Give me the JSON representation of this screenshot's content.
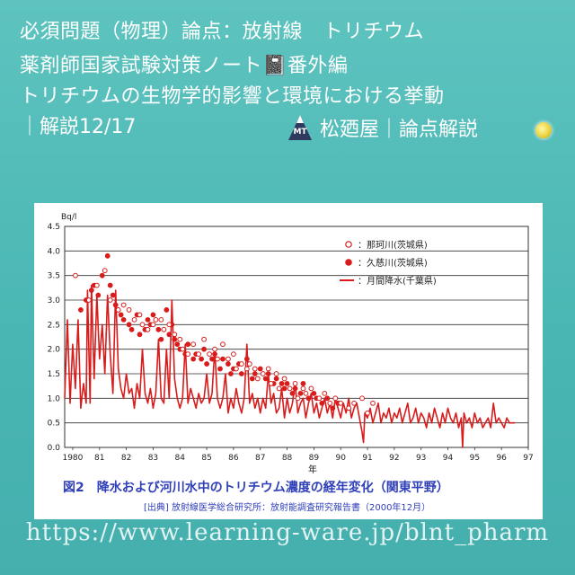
{
  "header": {
    "line1": "必須問題（物理）論点：放射線　トリチウム",
    "line2": "薬剤師国家試験対策ノート📓番外編",
    "line3": "トリチウムの生物学的影響と環境における挙動",
    "line4": "｜解説12/17",
    "brand": "松廼屋｜論点解説",
    "logo_text": "MT"
  },
  "colors": {
    "accent": "#d81c1c",
    "caption": "#3040b8"
  },
  "chart_data": {
    "type": "line",
    "ylabel": "Bq/l",
    "xlabel": "年",
    "ylim": [
      0,
      4.5
    ],
    "yticks": [
      0.0,
      0.5,
      1.0,
      1.5,
      2.0,
      2.5,
      3.0,
      3.5,
      4.0,
      4.5
    ],
    "xticks": [
      "1980",
      "81",
      "82",
      "83",
      "84",
      "85",
      "86",
      "87",
      "88",
      "89",
      "90",
      "91",
      "92",
      "93",
      "94",
      "95",
      "96",
      "97"
    ],
    "xlim": [
      1979.7,
      1997.0
    ],
    "legend": [
      "：那珂川(茨城県)",
      "：久慈川(茨城県)",
      "：月間降水(千葉県)"
    ],
    "series": [
      {
        "name": "：月間降水(千葉県)",
        "style": "line",
        "points": [
          [
            1979.7,
            1.0
          ],
          [
            1979.8,
            2.6
          ],
          [
            1979.9,
            0.9
          ],
          [
            1980.0,
            2.1
          ],
          [
            1980.1,
            1.2
          ],
          [
            1980.2,
            2.6
          ],
          [
            1980.3,
            0.8
          ],
          [
            1980.4,
            1.3
          ],
          [
            1980.5,
            0.9
          ],
          [
            1980.55,
            3.2
          ],
          [
            1980.65,
            0.9
          ],
          [
            1980.7,
            3.3
          ],
          [
            1980.8,
            1.4
          ],
          [
            1980.9,
            3.1
          ],
          [
            1981.0,
            1.8
          ],
          [
            1981.1,
            2.5
          ],
          [
            1981.2,
            1.5
          ],
          [
            1981.3,
            3.1
          ],
          [
            1981.4,
            1.9
          ],
          [
            1981.5,
            1.1
          ],
          [
            1981.6,
            3.2
          ],
          [
            1981.7,
            1.6
          ],
          [
            1981.8,
            1.2
          ],
          [
            1981.9,
            1.0
          ],
          [
            1982.0,
            1.5
          ],
          [
            1982.1,
            1.1
          ],
          [
            1982.2,
            1.2
          ],
          [
            1982.3,
            0.8
          ],
          [
            1982.4,
            1.3
          ],
          [
            1982.5,
            1.0
          ],
          [
            1982.6,
            2.0
          ],
          [
            1982.7,
            1.1
          ],
          [
            1982.8,
            0.9
          ],
          [
            1982.9,
            1.2
          ],
          [
            1983.0,
            0.8
          ],
          [
            1983.1,
            1.1
          ],
          [
            1983.2,
            2.2
          ],
          [
            1983.3,
            1.0
          ],
          [
            1983.4,
            0.9
          ],
          [
            1983.5,
            2.0
          ],
          [
            1983.6,
            1.0
          ],
          [
            1983.7,
            3.0
          ],
          [
            1983.8,
            1.4
          ],
          [
            1983.9,
            1.0
          ],
          [
            1984.0,
            0.8
          ],
          [
            1984.1,
            1.0
          ],
          [
            1984.2,
            2.1
          ],
          [
            1984.3,
            0.9
          ],
          [
            1984.4,
            1.2
          ],
          [
            1984.5,
            1.0
          ],
          [
            1984.6,
            0.8
          ],
          [
            1984.7,
            1.1
          ],
          [
            1984.8,
            0.9
          ],
          [
            1984.9,
            1.0
          ],
          [
            1985.0,
            1.5
          ],
          [
            1985.1,
            0.9
          ],
          [
            1985.2,
            1.1
          ],
          [
            1985.3,
            2.0
          ],
          [
            1985.4,
            1.0
          ],
          [
            1985.5,
            0.8
          ],
          [
            1985.6,
            1.0
          ],
          [
            1985.7,
            1.5
          ],
          [
            1985.8,
            0.7
          ],
          [
            1985.9,
            1.0
          ],
          [
            1986.0,
            0.8
          ],
          [
            1986.1,
            1.2
          ],
          [
            1986.2,
            0.9
          ],
          [
            1986.3,
            0.7
          ],
          [
            1986.4,
            1.0
          ],
          [
            1986.5,
            2.1
          ],
          [
            1986.6,
            0.9
          ],
          [
            1986.7,
            1.1
          ],
          [
            1986.8,
            0.8
          ],
          [
            1986.9,
            1.0
          ],
          [
            1987.0,
            0.7
          ],
          [
            1987.1,
            1.0
          ],
          [
            1987.2,
            0.8
          ],
          [
            1987.3,
            1.5
          ],
          [
            1987.4,
            0.9
          ],
          [
            1987.5,
            1.1
          ],
          [
            1987.6,
            0.7
          ],
          [
            1987.7,
            0.8
          ],
          [
            1987.8,
            1.2
          ],
          [
            1987.9,
            0.6
          ],
          [
            1988.0,
            1.0
          ],
          [
            1988.1,
            0.7
          ],
          [
            1988.2,
            0.9
          ],
          [
            1988.3,
            1.3
          ],
          [
            1988.4,
            0.7
          ],
          [
            1988.5,
            0.9
          ],
          [
            1988.6,
            1.0
          ],
          [
            1988.7,
            0.6
          ],
          [
            1988.8,
            0.9
          ],
          [
            1988.9,
            1.1
          ],
          [
            1989.0,
            0.7
          ],
          [
            1989.1,
            0.9
          ],
          [
            1989.2,
            0.6
          ],
          [
            1989.3,
            0.8
          ],
          [
            1989.4,
            1.0
          ],
          [
            1989.5,
            0.7
          ],
          [
            1989.6,
            0.9
          ],
          [
            1989.7,
            0.6
          ],
          [
            1989.8,
            1.0
          ],
          [
            1989.9,
            0.8
          ],
          [
            1990.0,
            0.6
          ],
          [
            1990.1,
            0.9
          ],
          [
            1990.2,
            0.7
          ],
          [
            1990.3,
            1.0
          ],
          [
            1990.4,
            0.6
          ],
          [
            1990.5,
            0.8
          ],
          [
            1990.6,
            0.9
          ],
          [
            1990.7,
            0.6
          ],
          [
            1990.8,
            0.3
          ],
          [
            1990.85,
            0.1
          ],
          [
            1990.9,
            0.7
          ],
          [
            1991.0,
            0.6
          ],
          [
            1991.1,
            0.8
          ],
          [
            1991.2,
            0.5
          ],
          [
            1991.3,
            0.7
          ],
          [
            1991.4,
            0.9
          ],
          [
            1991.5,
            0.5
          ],
          [
            1991.6,
            0.7
          ],
          [
            1991.7,
            0.6
          ],
          [
            1991.8,
            0.8
          ],
          [
            1991.9,
            0.5
          ],
          [
            1992.0,
            0.7
          ],
          [
            1992.1,
            0.6
          ],
          [
            1992.2,
            0.8
          ],
          [
            1992.3,
            0.5
          ],
          [
            1992.4,
            0.7
          ],
          [
            1992.5,
            0.9
          ],
          [
            1992.6,
            0.5
          ],
          [
            1992.7,
            0.6
          ],
          [
            1992.8,
            0.8
          ],
          [
            1992.9,
            0.5
          ],
          [
            1993.0,
            0.7
          ],
          [
            1993.1,
            0.6
          ],
          [
            1993.2,
            0.4
          ],
          [
            1993.3,
            0.7
          ],
          [
            1993.4,
            0.5
          ],
          [
            1993.5,
            0.8
          ],
          [
            1993.6,
            0.6
          ],
          [
            1993.7,
            0.4
          ],
          [
            1993.8,
            0.7
          ],
          [
            1993.9,
            0.5
          ],
          [
            1994.0,
            0.8
          ],
          [
            1994.1,
            0.6
          ],
          [
            1994.2,
            0.5
          ],
          [
            1994.3,
            0.7
          ],
          [
            1994.4,
            0.4
          ],
          [
            1994.5,
            0.6
          ],
          [
            1994.55,
            0.0
          ],
          [
            1994.6,
            0.7
          ],
          [
            1994.7,
            0.5
          ],
          [
            1994.8,
            0.6
          ],
          [
            1994.9,
            0.4
          ],
          [
            1995.0,
            0.7
          ],
          [
            1995.1,
            0.5
          ],
          [
            1995.2,
            0.6
          ],
          [
            1995.3,
            0.4
          ],
          [
            1995.4,
            0.5
          ],
          [
            1995.5,
            0.6
          ],
          [
            1995.6,
            0.4
          ],
          [
            1995.7,
            0.9
          ],
          [
            1995.8,
            0.5
          ],
          [
            1995.9,
            0.6
          ],
          [
            1996.0,
            0.5
          ],
          [
            1996.1,
            0.4
          ],
          [
            1996.2,
            0.6
          ],
          [
            1996.3,
            0.5
          ],
          [
            1996.4,
            0.5
          ],
          [
            1996.5,
            0.5
          ]
        ]
      },
      {
        "name": "：久慈川(茨城県)",
        "style": "filled",
        "points": [
          [
            1980.3,
            2.8
          ],
          [
            1980.5,
            3.0
          ],
          [
            1980.7,
            3.2
          ],
          [
            1980.8,
            3.3
          ],
          [
            1980.95,
            3.1
          ],
          [
            1981.1,
            3.5
          ],
          [
            1981.3,
            3.9
          ],
          [
            1981.4,
            3.3
          ],
          [
            1981.5,
            3.1
          ],
          [
            1981.6,
            2.9
          ],
          [
            1981.8,
            2.7
          ],
          [
            1981.9,
            2.6
          ],
          [
            1982.1,
            2.5
          ],
          [
            1982.2,
            2.4
          ],
          [
            1982.4,
            2.7
          ],
          [
            1982.5,
            2.3
          ],
          [
            1982.7,
            2.4
          ],
          [
            1982.8,
            2.6
          ],
          [
            1982.9,
            2.5
          ],
          [
            1983.0,
            2.7
          ],
          [
            1983.2,
            2.4
          ],
          [
            1983.3,
            2.2
          ],
          [
            1983.5,
            2.8
          ],
          [
            1983.6,
            2.3
          ],
          [
            1983.7,
            2.5
          ],
          [
            1983.8,
            2.2
          ],
          [
            1983.9,
            2.1
          ],
          [
            1984.0,
            2.0
          ],
          [
            1984.2,
            1.9
          ],
          [
            1984.3,
            2.1
          ],
          [
            1984.5,
            1.8
          ],
          [
            1984.6,
            1.9
          ],
          [
            1984.8,
            1.8
          ],
          [
            1984.9,
            2.0
          ],
          [
            1985.0,
            1.7
          ],
          [
            1985.2,
            1.8
          ],
          [
            1985.3,
            1.9
          ],
          [
            1985.5,
            1.6
          ],
          [
            1985.6,
            1.8
          ],
          [
            1985.8,
            1.7
          ],
          [
            1985.9,
            1.5
          ],
          [
            1986.0,
            1.6
          ],
          [
            1986.2,
            1.7
          ],
          [
            1986.3,
            1.5
          ],
          [
            1986.5,
            1.8
          ],
          [
            1986.7,
            1.4
          ],
          [
            1986.8,
            1.5
          ],
          [
            1987.0,
            1.6
          ],
          [
            1987.2,
            1.4
          ],
          [
            1987.3,
            1.5
          ],
          [
            1987.5,
            1.3
          ],
          [
            1987.6,
            1.4
          ],
          [
            1987.8,
            1.3
          ],
          [
            1987.9,
            1.2
          ],
          [
            1988.0,
            1.3
          ],
          [
            1988.2,
            1.1
          ],
          [
            1988.3,
            1.2
          ],
          [
            1988.5,
            1.1
          ],
          [
            1988.6,
            1.3
          ],
          [
            1988.8,
            1.0
          ],
          [
            1989.0,
            1.1
          ],
          [
            1989.1,
            1.0
          ],
          [
            1989.3,
            0.9
          ],
          [
            1989.5,
            1.0
          ],
          [
            1989.7,
            0.8
          ],
          [
            1989.9,
            0.9
          ]
        ]
      },
      {
        "name": "：那珂川(茨城県)",
        "style": "open",
        "points": [
          [
            1980.1,
            3.5
          ],
          [
            1980.6,
            3.0
          ],
          [
            1980.9,
            3.3
          ],
          [
            1981.2,
            3.6
          ],
          [
            1981.4,
            3.0
          ],
          [
            1981.7,
            2.8
          ],
          [
            1981.9,
            2.9
          ],
          [
            1982.1,
            2.8
          ],
          [
            1982.3,
            2.6
          ],
          [
            1982.5,
            2.7
          ],
          [
            1982.6,
            2.5
          ],
          [
            1982.8,
            2.4
          ],
          [
            1983.0,
            2.5
          ],
          [
            1983.1,
            2.6
          ],
          [
            1983.3,
            2.6
          ],
          [
            1983.4,
            2.4
          ],
          [
            1983.6,
            2.5
          ],
          [
            1983.8,
            2.3
          ],
          [
            1984.0,
            2.2
          ],
          [
            1984.1,
            2.0
          ],
          [
            1984.3,
            1.9
          ],
          [
            1984.5,
            2.1
          ],
          [
            1984.7,
            1.9
          ],
          [
            1984.9,
            2.2
          ],
          [
            1985.1,
            1.9
          ],
          [
            1985.3,
            2.0
          ],
          [
            1985.4,
            1.8
          ],
          [
            1985.6,
            2.1
          ],
          [
            1985.8,
            1.8
          ],
          [
            1986.0,
            1.9
          ],
          [
            1986.1,
            1.6
          ],
          [
            1986.3,
            1.7
          ],
          [
            1986.5,
            1.6
          ],
          [
            1986.6,
            1.7
          ],
          [
            1986.8,
            1.6
          ],
          [
            1986.9,
            1.4
          ],
          [
            1987.1,
            1.5
          ],
          [
            1987.3,
            1.6
          ],
          [
            1987.4,
            1.3
          ],
          [
            1987.6,
            1.5
          ],
          [
            1987.7,
            1.2
          ],
          [
            1987.9,
            1.4
          ],
          [
            1988.1,
            1.2
          ],
          [
            1988.3,
            1.3
          ],
          [
            1988.4,
            1.0
          ],
          [
            1988.6,
            1.2
          ],
          [
            1988.7,
            1.1
          ],
          [
            1988.9,
            1.2
          ],
          [
            1989.2,
            1.0
          ],
          [
            1989.4,
            1.1
          ],
          [
            1989.6,
            0.9
          ],
          [
            1989.8,
            1.0
          ],
          [
            1990.0,
            0.9
          ],
          [
            1990.3,
            0.8
          ],
          [
            1990.5,
            0.9
          ],
          [
            1990.8,
            1.0
          ],
          [
            1991.0,
            0.7
          ],
          [
            1991.2,
            0.9
          ]
        ]
      }
    ]
  },
  "caption": "図2　降水および河川水中のトリチウム濃度の経年変化（関東平野）",
  "source": "[出典] 放射線医学総合研究所：放射能調査研究報告書（2000年12月）",
  "url": "https://www.learning-ware.jp/blnt_pharm"
}
